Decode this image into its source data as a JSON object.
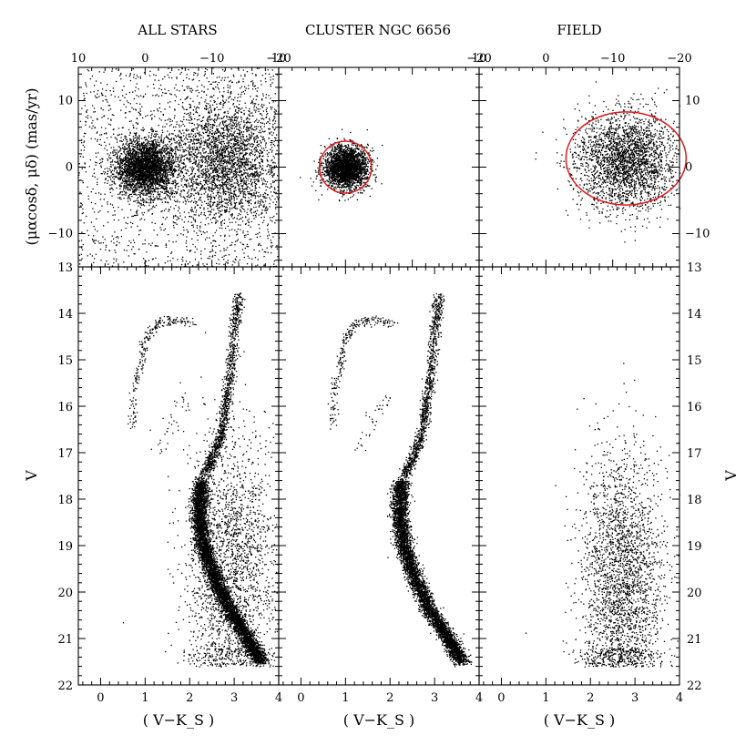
{
  "panel_titles": [
    "ALL STARS",
    "CLUSTER NGC 6656",
    "FIELD"
  ],
  "chart_data": [
    {
      "type": "scatter",
      "panel": "ALL STARS (vector-point diagram)",
      "xlabel": "",
      "ylabel": "(μαcosδ, μδ) (mas/yr)",
      "xlim": [
        10,
        -20
      ],
      "ylim": [
        -15,
        15
      ],
      "xticks": [
        10,
        0,
        -10,
        -20
      ],
      "yticks": [
        10,
        0,
        -10
      ],
      "clumps": [
        {
          "name": "cluster",
          "center": [
            0,
            0
          ],
          "sigma": [
            2.2,
            2.2
          ],
          "n": 3000
        },
        {
          "name": "field",
          "center": [
            -12,
            1
          ],
          "sigma": [
            4,
            4.6
          ],
          "n": 2600
        }
      ],
      "uniform_background": {
        "n": 1500,
        "x": [
          10,
          -20
        ],
        "y": [
          -15,
          15
        ]
      }
    },
    {
      "type": "scatter",
      "panel": "CLUSTER NGC 6656 (vector-point diagram)",
      "xlim": [
        10,
        -20
      ],
      "ylim": [
        -15,
        15
      ],
      "xticks": [
        10,
        -20
      ],
      "clumps": [
        {
          "name": "cluster",
          "center": [
            0,
            0
          ],
          "sigma": [
            1.6,
            1.6
          ],
          "n": 2600
        }
      ],
      "selection_circle": {
        "center": [
          0,
          0
        ],
        "radius": 3.9,
        "color": "#e41a1c"
      }
    },
    {
      "type": "scatter",
      "panel": "FIELD (vector-point diagram)",
      "xlim": [
        10,
        -20
      ],
      "ylim": [
        -15,
        15
      ],
      "xticks": [
        10,
        0,
        -10,
        -20
      ],
      "yticks": [
        10,
        0,
        -10
      ],
      "clumps": [
        {
          "name": "field",
          "center": [
            -12,
            1
          ],
          "sigma": [
            3.8,
            3.6
          ],
          "n": 2600
        }
      ],
      "selection_ellipse": {
        "center": [
          -12,
          1.3
        ],
        "rx": 9,
        "ry": 7,
        "color": "#e41a1c"
      }
    },
    {
      "type": "scatter",
      "panel": "ALL STARS (colour-magnitude diagram)",
      "xlabel": "( V−K_S )",
      "ylabel": "V",
      "xlim": [
        -0.5,
        4
      ],
      "ylim": [
        22,
        13
      ],
      "xticks": [
        0,
        1,
        2,
        3,
        4
      ],
      "yticks": [
        13,
        14,
        15,
        16,
        17,
        18,
        19,
        20,
        21,
        22
      ],
      "sequences": {
        "red_giant_branch": [
          [
            3.1,
            13.6
          ],
          [
            3.0,
            14.3
          ],
          [
            2.9,
            15.3
          ],
          [
            2.8,
            16.0
          ],
          [
            2.7,
            16.6
          ],
          [
            2.5,
            17.1
          ],
          [
            2.3,
            17.5
          ]
        ],
        "main_sequence": [
          [
            2.25,
            17.6
          ],
          [
            2.2,
            18.3
          ],
          [
            2.3,
            19.0
          ],
          [
            2.55,
            19.7
          ],
          [
            2.9,
            20.4
          ],
          [
            3.3,
            21.0
          ],
          [
            3.6,
            21.5
          ]
        ],
        "horizontal_branch": [
          [
            0.7,
            16.4
          ],
          [
            0.75,
            15.6
          ],
          [
            0.9,
            15.0
          ],
          [
            1.0,
            14.5
          ],
          [
            1.25,
            14.2
          ],
          [
            1.6,
            14.15
          ],
          [
            2.1,
            14.2
          ]
        ],
        "blue_stragglers": [
          [
            1.3,
            17.0
          ],
          [
            1.5,
            16.5
          ],
          [
            1.7,
            16.0
          ],
          [
            1.9,
            15.8
          ]
        ]
      },
      "field_cloud": {
        "center": [
          2.9,
          19.5
        ],
        "sigma": [
          0.5,
          1.5
        ],
        "n": 2200
      }
    },
    {
      "type": "scatter",
      "panel": "CLUSTER NGC 6656 (colour-magnitude diagram)",
      "xlabel": "( V−K_S )",
      "xlim": [
        -0.5,
        4
      ],
      "ylim": [
        22,
        13
      ],
      "xticks": [
        0,
        1,
        2,
        3,
        4
      ],
      "sequences": "same as ALL STARS, cluster members only"
    },
    {
      "type": "scatter",
      "panel": "FIELD (colour-magnitude diagram)",
      "xlabel": "( V−K_S )",
      "ylabel": "V",
      "xlim": [
        -0.5,
        4
      ],
      "ylim": [
        22,
        13
      ],
      "xticks": [
        0,
        1,
        2,
        3,
        4
      ],
      "yticks": [
        13,
        14,
        15,
        16,
        17,
        18,
        19,
        20,
        21,
        22
      ],
      "field_cloud": {
        "center": [
          2.7,
          19.8
        ],
        "sigma": [
          0.45,
          1.4
        ],
        "n": 2600
      }
    }
  ]
}
